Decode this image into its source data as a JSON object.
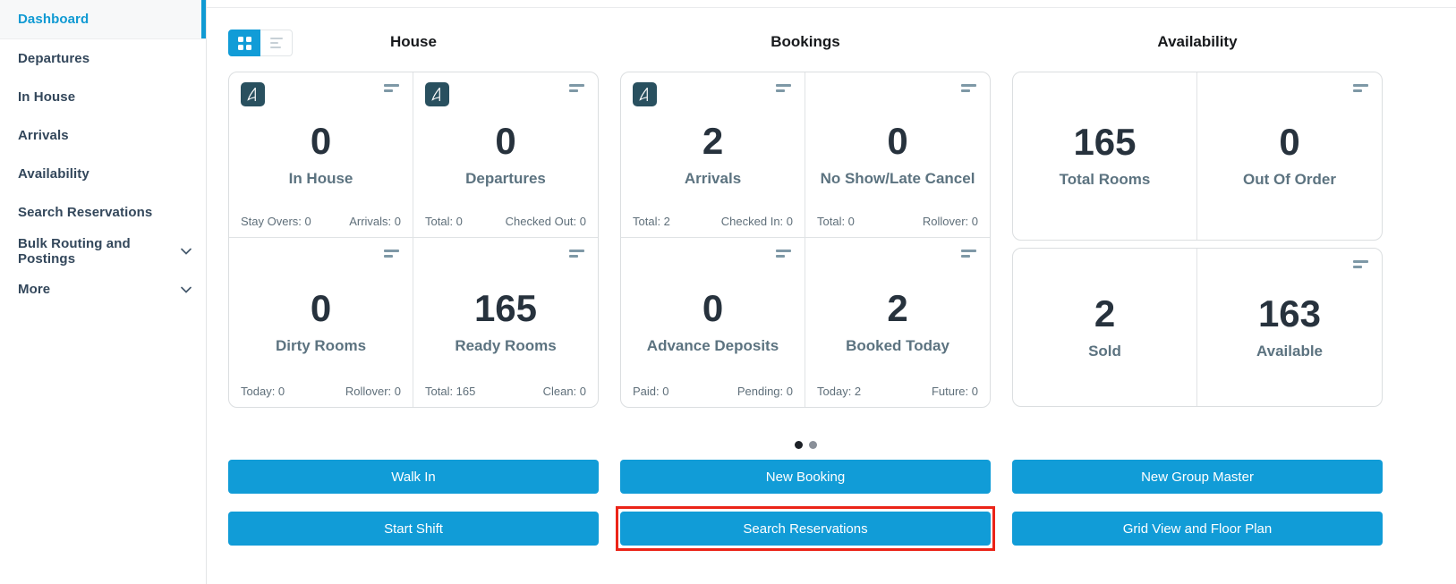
{
  "sidebar": {
    "items": [
      {
        "id": "dashboard",
        "label": "Dashboard",
        "active": true,
        "chevron": false
      },
      {
        "id": "departures",
        "label": "Departures",
        "active": false,
        "chevron": false
      },
      {
        "id": "in-house",
        "label": "In House",
        "active": false,
        "chevron": false
      },
      {
        "id": "arrivals",
        "label": "Arrivals",
        "active": false,
        "chevron": false
      },
      {
        "id": "availability",
        "label": "Availability",
        "active": false,
        "chevron": false
      },
      {
        "id": "search-reservations",
        "label": "Search Reservations",
        "active": false,
        "chevron": false
      },
      {
        "id": "bulk-routing-and-postings",
        "label": "Bulk Routing and Postings",
        "active": false,
        "chevron": true
      },
      {
        "id": "more",
        "label": "More",
        "active": false,
        "chevron": true
      }
    ]
  },
  "view_toggle": {
    "active": "grid",
    "options": [
      "grid",
      "list"
    ]
  },
  "sections": [
    {
      "id": "house",
      "title": "House",
      "layout": "grid",
      "cards": [
        {
          "id": "in-house",
          "value": "0",
          "label": "In House",
          "logo": true,
          "menu": true,
          "stat_left": "Stay Overs: 0",
          "stat_right": "Arrivals: 0"
        },
        {
          "id": "departures",
          "value": "0",
          "label": "Departures",
          "logo": true,
          "menu": true,
          "stat_left": "Total: 0",
          "stat_right": "Checked Out: 0"
        },
        {
          "id": "dirty-rooms",
          "value": "0",
          "label": "Dirty Rooms",
          "logo": false,
          "menu": true,
          "stat_left": "Today: 0",
          "stat_right": "Rollover: 0"
        },
        {
          "id": "ready-rooms",
          "value": "165",
          "label": "Ready Rooms",
          "logo": false,
          "menu": true,
          "stat_left": "Total: 165",
          "stat_right": "Clean: 0"
        }
      ]
    },
    {
      "id": "bookings",
      "title": "Bookings",
      "layout": "grid",
      "cards": [
        {
          "id": "arrivals",
          "value": "2",
          "label": "Arrivals",
          "logo": true,
          "menu": true,
          "stat_left": "Total: 2",
          "stat_right": "Checked In: 0"
        },
        {
          "id": "no-show-late-cancel",
          "value": "0",
          "label": "No Show/Late Cancel",
          "logo": false,
          "menu": true,
          "stat_left": "Total: 0",
          "stat_right": "Rollover: 0"
        },
        {
          "id": "advance-deposits",
          "value": "0",
          "label": "Advance Deposits",
          "logo": false,
          "menu": true,
          "stat_left": "Paid: 0",
          "stat_right": "Pending: 0"
        },
        {
          "id": "booked-today",
          "value": "2",
          "label": "Booked Today",
          "logo": false,
          "menu": true,
          "stat_left": "Today: 2",
          "stat_right": "Future: 0"
        }
      ]
    },
    {
      "id": "availability",
      "title": "Availability",
      "layout": "rows",
      "rows": [
        {
          "menu": true,
          "cells": [
            {
              "id": "total-rooms",
              "value": "165",
              "label": "Total Rooms"
            },
            {
              "id": "out-of-order",
              "value": "0",
              "label": "Out Of Order"
            }
          ]
        },
        {
          "menu": true,
          "cells": [
            {
              "id": "sold",
              "value": "2",
              "label": "Sold"
            },
            {
              "id": "available",
              "value": "163",
              "label": "Available"
            }
          ]
        }
      ]
    }
  ],
  "pagination": {
    "dots": [
      {
        "active": true
      },
      {
        "active": false
      }
    ]
  },
  "buttons": {
    "rows": [
      [
        {
          "id": "walk-in",
          "label": "Walk In"
        },
        {
          "id": "new-booking",
          "label": "New Booking"
        },
        {
          "id": "new-group-master",
          "label": "New Group Master"
        }
      ],
      [
        {
          "id": "start-shift",
          "label": "Start Shift"
        },
        {
          "id": "search-reservations",
          "label": "Search Reservations",
          "highlighted": true
        },
        {
          "id": "grid-view-and-floor-plan",
          "label": "Grid View and Floor Plan"
        }
      ]
    ]
  },
  "icons": {
    "card_corner": "brand-logo-icon",
    "card_menu": "card-menu-icon",
    "toggle": [
      "grid-view-icon",
      "list-view-icon"
    ],
    "sidebar_expand": "chevron-down-icon"
  },
  "colors": {
    "accent": "#119CD7",
    "sidebar_text": "#33475B",
    "active_text": "#109AD3",
    "number": "#27323D",
    "label": "#5C7380",
    "substat": "#5F6F7A",
    "card_border": "#DBDEE0",
    "menu_icon": "#7E98A6",
    "logo_bg": "#29505F",
    "highlight_red": "#EB2418",
    "dot_active": "#1D2127",
    "dot_inactive": "#8A9099"
  }
}
